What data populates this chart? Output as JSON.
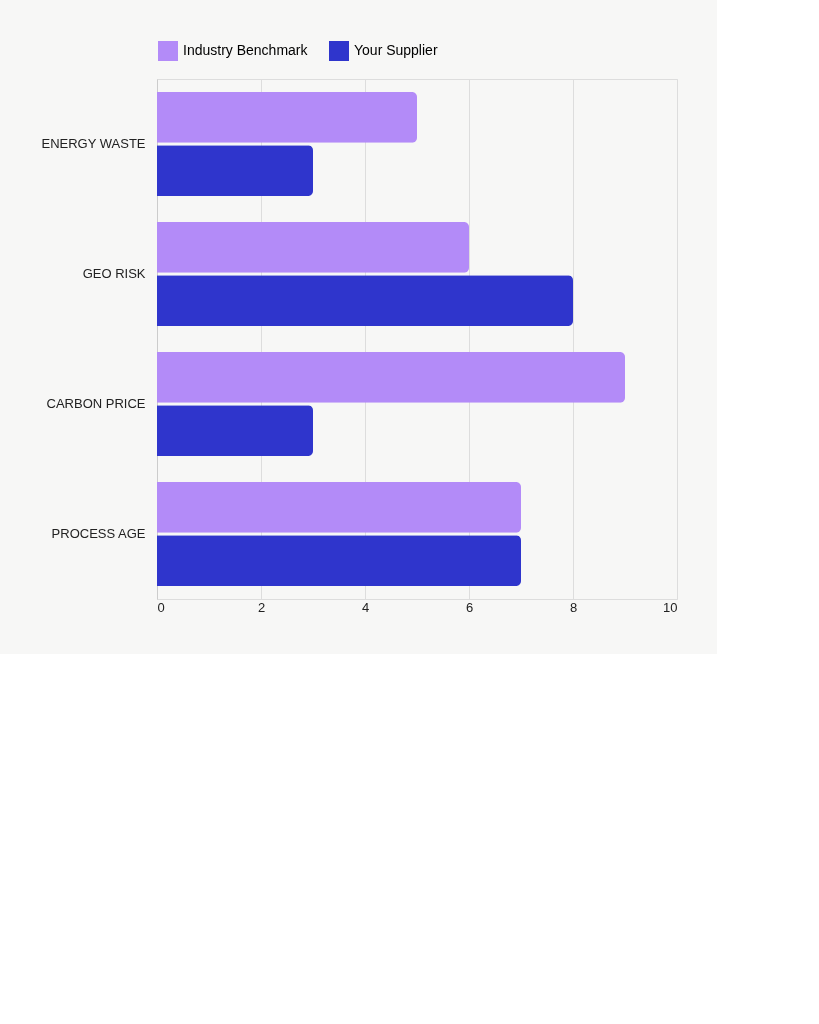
{
  "chart_data": {
    "type": "bar",
    "orientation": "horizontal",
    "categories": [
      "ENERGY WASTE",
      "GEO RISK",
      "CARBON PRICE",
      "PROCESS AGE"
    ],
    "series": [
      {
        "name": "Industry Benchmark",
        "color": "#b38bf8",
        "values": [
          5,
          6,
          9,
          7
        ]
      },
      {
        "name": "Your Supplier",
        "color": "#2f35cc",
        "values": [
          3,
          8,
          3,
          7
        ]
      }
    ],
    "xlim": [
      0,
      10
    ],
    "xticks": [
      0,
      2,
      4,
      6,
      8,
      10
    ],
    "grid": "x",
    "legend": "top"
  }
}
